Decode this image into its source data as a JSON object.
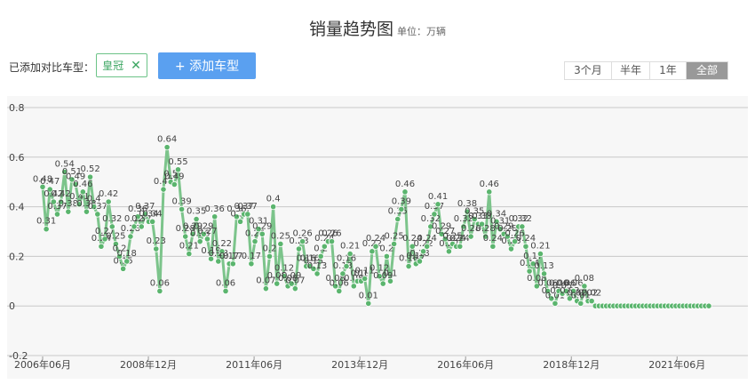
{
  "header": {
    "title": "销量趋势图",
    "unit": "单位：万辆"
  },
  "compare": {
    "label": "已添加对比车型：",
    "tag": "皇冠",
    "add_button": "+ 添加车型"
  },
  "ranges": [
    {
      "label": "3个月",
      "active": false
    },
    {
      "label": "半年",
      "active": false
    },
    {
      "label": "1年",
      "active": false
    },
    {
      "label": "全部",
      "active": true
    }
  ],
  "colors": {
    "line": "#7cc48b",
    "point": "#5bb56e",
    "grid": "#c8c8c8",
    "active_range": "#999999",
    "button": "#5aa0f0"
  },
  "icons": {
    "remove": "close-icon"
  },
  "chart_data": {
    "type": "line",
    "title": "销量趋势图",
    "subtitle": "单位：万辆",
    "ylim": [
      -0.2,
      0.8
    ],
    "yticks": [
      -0.2,
      0,
      0.2,
      0.4,
      0.6,
      0.8
    ],
    "x_start": "2006-06",
    "x_end": "2022-03",
    "xticks": [
      "2006年06月",
      "2008年12月",
      "2011年06月",
      "2013年12月",
      "2016年06月",
      "2018年12月",
      "2021年06月"
    ],
    "grid": true,
    "legend": "none",
    "series": [
      {
        "values": [
          0.48,
          0.31,
          0.47,
          0.42,
          0.37,
          0.42,
          0.54,
          0.38,
          0.51,
          0.49,
          0.41,
          0.46,
          0.38,
          0.52,
          0.4,
          0.37,
          0.24,
          0.27,
          0.42,
          0.32,
          0.25,
          0.2,
          0.15,
          0.18,
          0.28,
          0.32,
          0.36,
          0.32,
          0.37,
          0.34,
          0.34,
          0.23,
          0.06,
          0.47,
          0.64,
          0.5,
          0.49,
          0.55,
          0.39,
          0.28,
          0.21,
          0.29,
          0.35,
          0.26,
          0.29,
          0.27,
          0.19,
          0.36,
          0.18,
          0.22,
          0.06,
          0.17,
          0.17,
          0.36,
          0.34,
          0.37,
          0.37,
          0.17,
          0.26,
          0.31,
          0.29,
          0.07,
          0.2,
          0.4,
          0.09,
          0.25,
          0.12,
          0.08,
          0.09,
          0.07,
          0.23,
          0.26,
          0.16,
          0.16,
          0.15,
          0.13,
          0.2,
          0.24,
          0.26,
          0.26,
          0.08,
          0.06,
          0.13,
          0.16,
          0.21,
          0.08,
          0.1,
          0.1,
          0.11,
          0.01,
          0.22,
          0.24,
          0.12,
          0.09,
          0.2,
          0.1,
          0.25,
          0.35,
          0.39,
          0.46,
          0.16,
          0.24,
          0.17,
          0.18,
          0.22,
          0.24,
          0.32,
          0.37,
          0.41,
          0.29,
          0.27,
          0.22,
          0.25,
          0.24,
          0.24,
          0.32,
          0.38,
          0.28,
          0.35,
          0.33,
          0.33,
          0.28,
          0.46,
          0.24,
          0.34,
          0.31,
          0.29,
          0.28,
          0.23,
          0.26,
          0.32,
          0.32,
          0.24,
          0.14,
          0.17,
          0.08,
          0.21,
          0.13,
          0.06,
          0.03,
          0.01,
          0.06,
          0.05,
          0.06,
          0.03,
          0.06,
          0.02,
          0.01,
          0.08,
          0.02,
          0.02,
          0,
          0,
          0,
          0,
          0,
          0,
          0,
          0,
          0,
          0,
          0,
          0,
          0,
          0,
          0,
          0,
          0,
          0,
          0,
          0,
          0,
          0,
          0,
          0,
          0,
          0,
          0,
          0,
          0,
          0,
          0,
          0
        ]
      }
    ]
  }
}
